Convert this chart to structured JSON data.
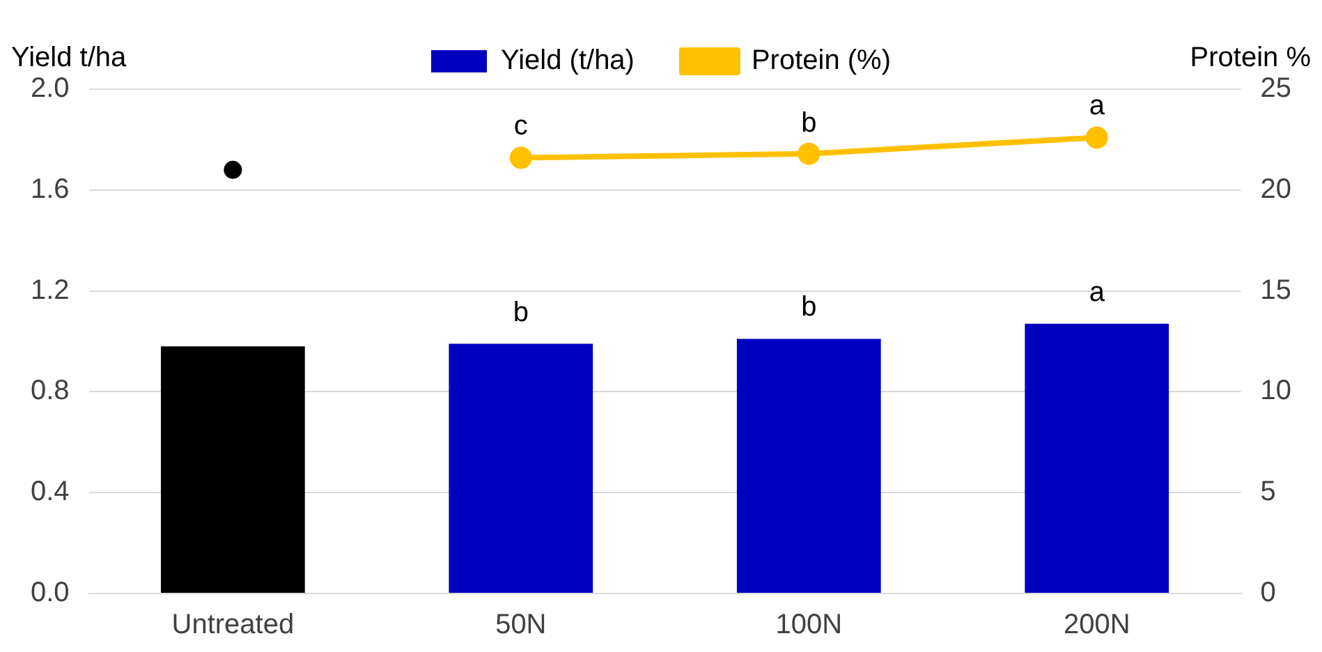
{
  "chart_data": {
    "type": "bar",
    "categories": [
      "Untreated",
      "50N",
      "100N",
      "200N"
    ],
    "xlabel": null,
    "ylabel": "Yield t/ha",
    "y2label": "Protein %",
    "series": [
      {
        "name": "Yield (t/ha)",
        "colors": [
          "#000000",
          "#0000c0",
          "#0000c0",
          "#0000c0"
        ],
        "color": "#0000c0",
        "values": [
          0.98,
          0.99,
          1.01,
          1.07
        ]
      },
      {
        "name": "Protein (%)",
        "type": "line",
        "axis": "y2",
        "color": "#ffc000",
        "marker": "circle",
        "values": [
          null,
          21.6,
          21.8,
          22.6
        ]
      },
      {
        "type": "scatter",
        "axis": "y2",
        "color": "#000000",
        "marker": "circle",
        "x": [
          "Untreated"
        ],
        "values": [
          21.0
        ]
      }
    ],
    "ylim": [
      0,
      2.0
    ],
    "yticks": [
      {
        "value": 0,
        "label": "0.0"
      },
      {
        "value": 0.4,
        "label": "0.4"
      },
      {
        "value": 0.8,
        "label": "0.8"
      },
      {
        "value": 1.2,
        "label": "1.2"
      },
      {
        "value": 1.6,
        "label": "1.6"
      },
      {
        "value": 2.0,
        "label": "2.0"
      }
    ],
    "y2lim": [
      0,
      25
    ],
    "y2ticks": [
      0,
      5,
      10,
      15,
      20,
      25
    ],
    "grid": "y",
    "legend": "top",
    "annotations": [
      {
        "text": "b",
        "x": "50N",
        "y": 0.99
      },
      {
        "text": "b",
        "x": "100N",
        "y": 1.01
      },
      {
        "text": "a",
        "x": "200N",
        "y": 1.07
      },
      {
        "text": "c",
        "x": "50N",
        "y": 1.73
      },
      {
        "text": "b",
        "x": "100N",
        "y": 1.74
      },
      {
        "text": "a",
        "x": "200N",
        "y": 1.81
      }
    ]
  }
}
